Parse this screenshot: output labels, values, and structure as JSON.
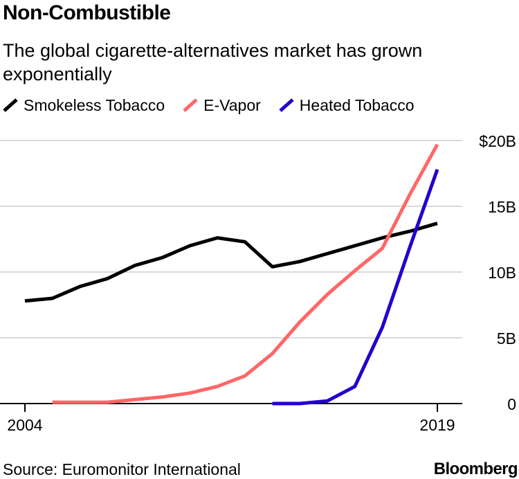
{
  "header": {
    "title": "Non-Combustible",
    "subtitle": "The global cigarette-alternatives market has grown exponentially"
  },
  "footer": {
    "source": "Source: Euromonitor International",
    "brand": "Bloomberg"
  },
  "chart_data": {
    "type": "line",
    "title": "Non-Combustible",
    "subtitle": "The global cigarette-alternatives market has grown exponentially",
    "xlabel": "",
    "ylabel": "",
    "x": [
      2004,
      2005,
      2006,
      2007,
      2008,
      2009,
      2010,
      2011,
      2012,
      2013,
      2014,
      2015,
      2016,
      2017,
      2018,
      2019
    ],
    "x_tick_labels": [
      "2004",
      "2019"
    ],
    "x_tick_values": [
      2004,
      2019
    ],
    "y_tick_labels": [
      "0",
      "5B",
      "10B",
      "15B",
      "$20B"
    ],
    "y_tick_values": [
      0,
      5,
      10,
      15,
      20
    ],
    "ylim": [
      0,
      20
    ],
    "y_unit": "billion USD",
    "grid": true,
    "legend_position": "top",
    "series": [
      {
        "name": "Smokeless Tobacco",
        "color": "#000000",
        "values": [
          7.8,
          8.0,
          8.9,
          9.5,
          10.5,
          11.1,
          12.0,
          12.6,
          12.3,
          10.4,
          10.8,
          11.4,
          12.0,
          12.6,
          13.1,
          13.7
        ]
      },
      {
        "name": "E-Vapor",
        "color": "#ff6666",
        "values": [
          null,
          0.1,
          0.1,
          0.1,
          0.3,
          0.5,
          0.8,
          1.3,
          2.1,
          3.8,
          6.2,
          8.3,
          10.1,
          11.8,
          15.9,
          19.7
        ]
      },
      {
        "name": "Heated Tobacco",
        "color": "#2200cc",
        "values": [
          null,
          null,
          null,
          null,
          null,
          null,
          null,
          null,
          null,
          0.0,
          0.0,
          0.2,
          1.3,
          5.8,
          11.9,
          17.8
        ]
      }
    ]
  }
}
